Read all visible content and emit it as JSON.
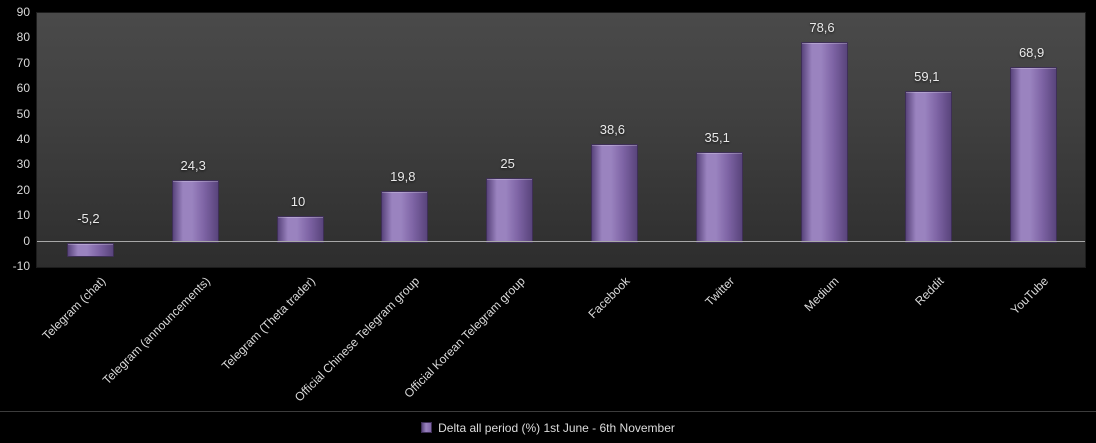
{
  "chart_data": {
    "type": "bar",
    "title": "",
    "categories": [
      "Telegram (chat)",
      "Telegram (announcements)",
      "Telegram (Theta trader)",
      "Official Chinese Telegram group",
      "Official Korean Telegram group",
      "Facebook",
      "Twitter",
      "Medium",
      "Reddit",
      "YouTube"
    ],
    "values": [
      -5.2,
      24.3,
      10,
      19.8,
      25,
      38.6,
      35.1,
      78.6,
      59.1,
      68.9
    ],
    "value_labels": [
      "-5,2",
      "24,3",
      "10",
      "19,8",
      "25",
      "38,6",
      "35,1",
      "78,6",
      "59,1",
      "68,9"
    ],
    "y_ticks": [
      90,
      80,
      70,
      60,
      50,
      40,
      30,
      20,
      10,
      0,
      -10
    ],
    "ylim": [
      -10,
      90
    ],
    "grid": false,
    "legend": {
      "position": "bottom",
      "label": "Delta all period (%) 1st June - 6th November"
    },
    "colors": {
      "background": "#000000",
      "plot_gradient_top": "#4a4a4a",
      "plot_gradient_bottom": "#2d2d2d",
      "bar_fill_light": "#9a83bf",
      "bar_fill_mid": "#7f65a6",
      "bar_fill_dark": "#59447c",
      "bar_border": "#3e2f56",
      "zero_line": "#a8a8a8",
      "axis_text": "#d9d9d9",
      "value_text": "#eaeaea"
    }
  }
}
